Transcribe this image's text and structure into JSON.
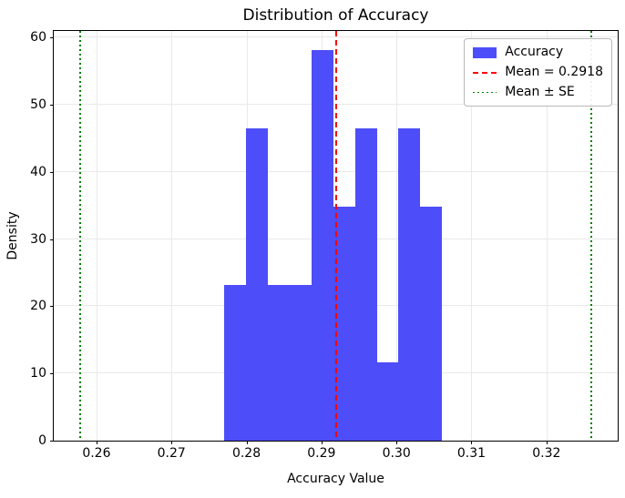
{
  "chart_data": {
    "type": "bar",
    "subtype": "histogram",
    "title": "Distribution of Accuracy",
    "xlabel": "Accuracy Value",
    "ylabel": "Density",
    "bin_edges": [
      0.277,
      0.27991,
      0.28282,
      0.28573,
      0.28864,
      0.29155,
      0.29446,
      0.29737,
      0.30028,
      0.30319,
      0.3061
    ],
    "densities": [
      23.2,
      46.5,
      23.2,
      23.2,
      58.1,
      34.9,
      46.5,
      11.6,
      46.5,
      34.9
    ],
    "mean": 0.2918,
    "mean_minus_se": 0.2577,
    "mean_plus_se": 0.3259,
    "x_ticks": [
      0.26,
      0.27,
      0.28,
      0.29,
      0.3,
      0.31,
      0.32
    ],
    "x_tick_labels": [
      "0.26",
      "0.27",
      "0.28",
      "0.29",
      "0.30",
      "0.31",
      "0.32"
    ],
    "y_ticks": [
      0,
      10,
      20,
      30,
      40,
      50,
      60
    ],
    "y_tick_labels": [
      "0",
      "10",
      "20",
      "30",
      "40",
      "50",
      "60"
    ],
    "xlim": [
      0.2543,
      0.3295
    ],
    "ylim": [
      0,
      61
    ],
    "grid": true,
    "legend_position": "upper right",
    "colors": {
      "bar": "#4d4dfa",
      "mean_line": "#ff0000",
      "se_line": "#008000",
      "grid": "#e9e9e9",
      "axis": "#000000"
    }
  },
  "legend": {
    "items": [
      {
        "icon": "blue-patch-key",
        "label": "Accuracy",
        "style": "patch"
      },
      {
        "icon": "red-dashed-line-key",
        "label": "Mean = 0.2918",
        "style": "dashed"
      },
      {
        "icon": "green-dotted-line-key",
        "label": "Mean ± SE",
        "style": "dotted"
      }
    ]
  }
}
